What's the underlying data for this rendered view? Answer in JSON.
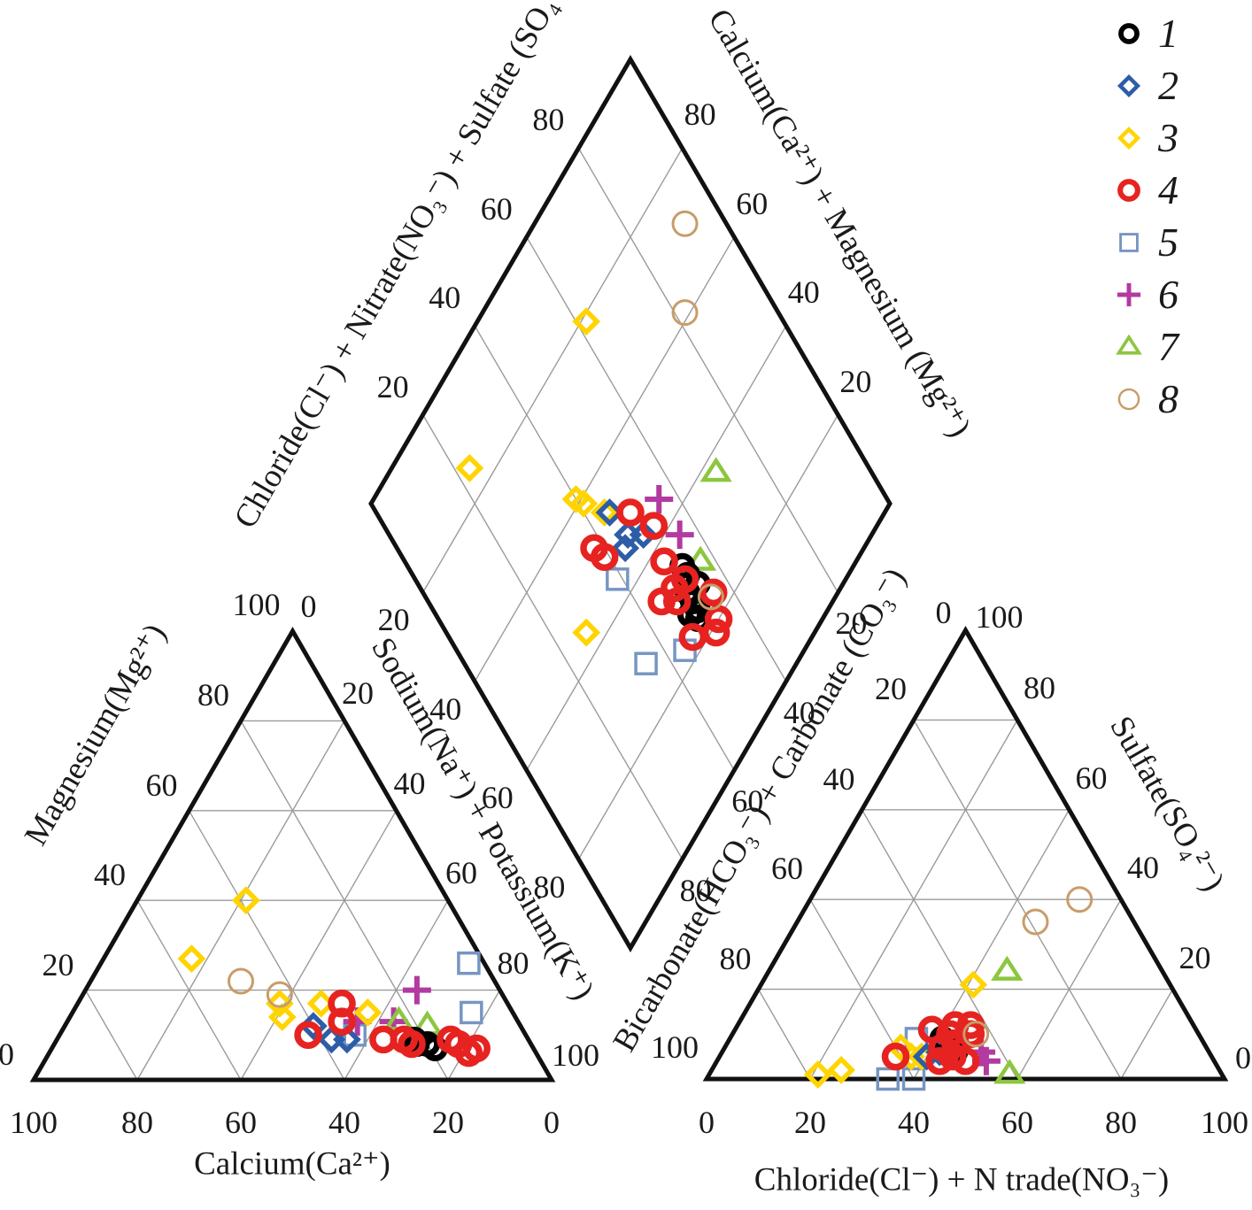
{
  "colors": {
    "background": "#ffffff",
    "axis": "#111111",
    "grid": "#9b9b9b",
    "series_1": "#000000",
    "series_2": "#2d5da7",
    "series_3": "#ffd400",
    "series_4": "#e62320",
    "series_5": "#7795c2",
    "series_6": "#b23aa0",
    "series_7": "#8dc63f",
    "series_8": "#c79d69"
  },
  "legend": {
    "items": [
      {
        "id": "1",
        "label": "1",
        "marker": "ring",
        "color": "#000000",
        "size": 11,
        "stroke_width": 7
      },
      {
        "id": "2",
        "label": "2",
        "marker": "diamond",
        "color": "#2d5da7",
        "size": 12,
        "stroke_width": 5.5
      },
      {
        "id": "3",
        "label": "3",
        "marker": "diamond",
        "color": "#ffd400",
        "size": 12,
        "stroke_width": 5.5
      },
      {
        "id": "4",
        "label": "4",
        "marker": "ring",
        "color": "#e62320",
        "size": 12,
        "stroke_width": 7.5
      },
      {
        "id": "5",
        "label": "5",
        "marker": "square",
        "color": "#7795c2",
        "size": 11.5,
        "stroke_width": 3.5
      },
      {
        "id": "6",
        "label": "6",
        "marker": "plus",
        "color": "#b23aa0",
        "size": 16,
        "stroke_width": 6
      },
      {
        "id": "7",
        "label": "7",
        "marker": "triangle",
        "color": "#8dc63f",
        "size": 14,
        "stroke_width": 4.5
      },
      {
        "id": "8",
        "label": "8",
        "marker": "ring",
        "color": "#c79d69",
        "size": 13.5,
        "stroke_width": 3
      }
    ]
  },
  "panels": {
    "diamond": {
      "upper_left_label": "Chloride(Cl⁻) + Nitrate(NO₃⁻) + Sulfate (SO₄²⁻)",
      "upper_right_label": "Calcium(Ca²⁺) + Magnesium (Mg²⁺)",
      "upper_left_ticks": [
        20,
        40,
        60,
        80
      ],
      "upper_right_ticks": [
        80,
        60,
        40,
        20
      ],
      "lower_left_ticks": [
        20,
        40,
        60,
        80
      ],
      "lower_right_ticks": [
        20,
        40,
        60,
        80
      ]
    },
    "cation_triangle": {
      "bottom_label": "Calcium(Ca²⁺)",
      "left_label": "Magnesium(Mg²⁺)",
      "right_label": "Sodium(Na⁺) + Potassium(K⁺)",
      "bottom_ticks": [
        100,
        80,
        60,
        40,
        20,
        0
      ],
      "left_ticks": [
        0,
        20,
        40,
        60,
        80
      ],
      "left_apex_tick": 100,
      "right_apex_tick": 0,
      "right_ticks": [
        20,
        40,
        60,
        80
      ],
      "right_end_tick": 100
    },
    "anion_triangle": {
      "bottom_label": "Chloride(Cl⁻) + N trade(NO₃⁻)",
      "left_label": "Bicarbonate(HCO₃⁻) + Carbonate (CO₃⁻)",
      "right_label": "Sulfate(SO₄²⁻)",
      "bottom_ticks": [
        0,
        20,
        40,
        60,
        80,
        100
      ],
      "left_apex_tick": 0,
      "left_ticks": [
        20,
        40,
        60,
        80
      ],
      "left_end_tick": 100,
      "right_apex_tick": 100,
      "right_ticks": [
        80,
        60,
        40,
        20
      ],
      "right_end_tick": 0
    }
  },
  "chart_data": [
    {
      "type": "scatter",
      "subplot": "cation-ternary",
      "xlabel": "Calcium(Ca²⁺)",
      "left_axis": "Magnesium(Mg²⁺)",
      "right_axis": "Sodium(Na⁺) + Potassium(K⁺)",
      "axis_range": [
        0,
        100
      ],
      "grid": true,
      "coord_order": [
        "ca",
        "mg",
        "na_k"
      ],
      "series": [
        {
          "name": "1",
          "points": [
            [
              22,
              9,
              69
            ],
            [
              20,
              8,
              72
            ],
            [
              19,
              7,
              74
            ],
            [
              22,
              8,
              70
            ]
          ]
        },
        {
          "name": "2",
          "points": [
            [
              40,
              12,
              48
            ],
            [
              38,
              9,
              53
            ],
            [
              35,
              9,
              56
            ]
          ]
        },
        {
          "name": "3",
          "points": [
            [
              39,
              40,
              21
            ],
            [
              56,
              27,
              17
            ],
            [
              44,
              17,
              39
            ],
            [
              45,
              14,
              41
            ],
            [
              36,
              17,
              47
            ],
            [
              28,
              15,
              57
            ]
          ]
        },
        {
          "name": "4",
          "points": [
            [
              32,
              17,
              51
            ],
            [
              34,
              13,
              53
            ],
            [
              42,
              10,
              48
            ],
            [
              28,
              9,
              63
            ],
            [
              24,
              9,
              67
            ],
            [
              23,
              8,
              69
            ],
            [
              15,
              9,
              76
            ],
            [
              14,
              8,
              78
            ],
            [
              13,
              6,
              81
            ],
            [
              11,
              7,
              82
            ]
          ]
        },
        {
          "name": "5",
          "points": [
            [
              33,
              10,
              57
            ],
            [
              3,
              26,
              71
            ],
            [
              8,
              15,
              77
            ]
          ]
        },
        {
          "name": "6",
          "points": [
            [
              16,
              20,
              64
            ],
            [
              31,
              13,
              56
            ],
            [
              24,
              13,
              63
            ]
          ]
        },
        {
          "name": "7",
          "points": [
            [
              23,
              13,
              64
            ],
            [
              18,
              12,
              70
            ]
          ]
        },
        {
          "name": "8",
          "points": [
            [
              49,
              22,
              29
            ],
            [
              43,
              19,
              38
            ]
          ]
        }
      ]
    },
    {
      "type": "scatter",
      "subplot": "anion-ternary",
      "xlabel": "Chloride(Cl⁻) + N trade(NO₃⁻)",
      "left_axis": "Bicarbonate(HCO₃⁻) + Carbonate (CO₃⁻)",
      "right_axis": "Sulfate(SO₄²⁻)",
      "axis_range": [
        0,
        100
      ],
      "grid": true,
      "coord_order": [
        "cl_no3",
        "so4",
        "hco3_co3"
      ],
      "series": [
        {
          "name": "1",
          "points": [
            [
              41,
              9,
              50
            ],
            [
              44,
              7,
              49
            ],
            [
              45,
              6,
              49
            ]
          ]
        },
        {
          "name": "2",
          "points": [
            [
              40,
              5,
              55
            ],
            [
              42,
              6,
              52
            ]
          ]
        },
        {
          "name": "3",
          "points": [
            [
              41,
              21,
              38
            ],
            [
              21,
              1,
              78
            ],
            [
              25,
              2,
              73
            ],
            [
              34,
              7,
              59
            ],
            [
              37,
              5,
              58
            ],
            [
              39,
              5,
              56
            ]
          ]
        },
        {
          "name": "4",
          "points": [
            [
              34,
              5,
              61
            ],
            [
              38,
              11,
              51
            ],
            [
              42,
              10,
              48
            ],
            [
              44,
              8,
              48
            ],
            [
              42,
              7,
              51
            ],
            [
              45,
              5,
              50
            ],
            [
              48,
              4,
              48
            ],
            [
              43,
              4,
              53
            ],
            [
              42,
              12,
              46
            ],
            [
              45,
              12,
              43
            ],
            [
              46,
              10,
              44
            ]
          ]
        },
        {
          "name": "5",
          "points": [
            [
              35,
              0,
              65
            ],
            [
              40,
              0,
              60
            ],
            [
              36,
              9,
              55
            ]
          ]
        },
        {
          "name": "6",
          "points": [
            [
              50,
              6,
              44
            ],
            [
              52,
              4,
              44
            ]
          ]
        },
        {
          "name": "7",
          "points": [
            [
              46,
              24,
              30
            ],
            [
              58,
              1,
              41
            ]
          ]
        },
        {
          "name": "8",
          "points": [
            [
              52,
              40,
              8
            ],
            [
              46,
              35,
              19
            ],
            [
              47,
              10,
              43
            ]
          ]
        }
      ]
    },
    {
      "type": "scatter",
      "subplot": "diamond",
      "upper_left_axis": "Chloride(Cl⁻) + Nitrate(NO₃⁻) + Sulfate (SO₄²⁻)",
      "upper_right_axis": "Calcium(Ca²⁺) + Magnesium (Mg²⁺)",
      "axis_range": [
        0,
        100
      ],
      "grid": true,
      "coord_order": [
        "cl_no3_so4",
        "ca_mg"
      ],
      "series": [
        {
          "name": "1",
          "points": [
            [
              53,
              33
            ],
            [
              53,
              31
            ],
            [
              54,
              28
            ],
            [
              51,
              29
            ],
            [
              51,
              27
            ],
            [
              51,
              25
            ],
            [
              49,
              26
            ],
            [
              50,
              24
            ]
          ]
        },
        {
          "name": "2",
          "points": [
            [
              45,
              53
            ],
            [
              46,
              47
            ],
            [
              49,
              44
            ],
            [
              44,
              46
            ]
          ]
        },
        {
          "name": "3",
          "points": [
            [
              62,
              79
            ],
            [
              23,
              85
            ],
            [
              40,
              61
            ],
            [
              41,
              59
            ],
            [
              44,
              54
            ],
            [
              27,
              44
            ]
          ]
        },
        {
          "name": "4",
          "points": [
            [
              49,
              49
            ],
            [
              52,
              43
            ],
            [
              38,
              52
            ],
            [
              39,
              49
            ],
            [
              50,
              37
            ],
            [
              52,
              31
            ],
            [
              49,
              32
            ],
            [
              48,
              30
            ],
            [
              45,
              33
            ],
            [
              56,
              24
            ],
            [
              54,
              20
            ],
            [
              52,
              19
            ],
            [
              47,
              23
            ]
          ]
        },
        {
          "name": "5",
          "points": [
            [
              39,
              44
            ],
            [
              44,
              23
            ],
            [
              35,
              29
            ]
          ]
        },
        {
          "name": "6",
          "points": [
            [
              56,
              45
            ],
            [
              56,
              37
            ]
          ]
        },
        {
          "name": "7",
          "points": [
            [
              70,
              37
            ],
            [
              57,
              30
            ]
          ]
        },
        {
          "name": "8",
          "points": [
            [
              92,
              71
            ],
            [
              82,
              61
            ],
            [
              55,
              24
            ]
          ]
        }
      ]
    }
  ]
}
